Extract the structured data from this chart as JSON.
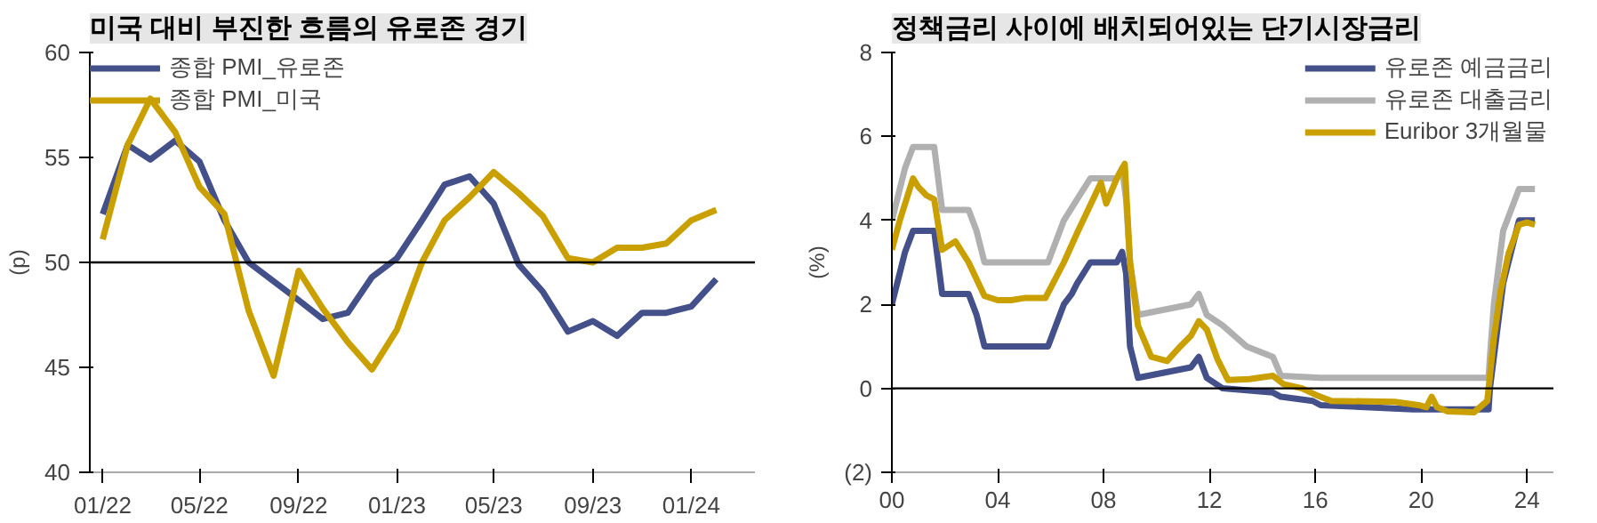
{
  "chart_data": [
    {
      "type": "line",
      "title": "미국 대비 부진한 흐름의 유로존 경기",
      "ylabel": "(p)",
      "x": [
        "2022-01",
        "2022-02",
        "2022-03",
        "2022-04",
        "2022-05",
        "2022-06",
        "2022-07",
        "2022-08",
        "2022-09",
        "2022-10",
        "2022-11",
        "2022-12",
        "2023-01",
        "2023-02",
        "2023-03",
        "2023-04",
        "2023-05",
        "2023-06",
        "2023-07",
        "2023-08",
        "2023-09",
        "2023-10",
        "2023-11",
        "2023-12",
        "2024-01",
        "2024-02"
      ],
      "series": [
        {
          "name": "종합 PMI_유로존",
          "color": "#44508a",
          "values": [
            52.3,
            55.6,
            54.9,
            55.8,
            54.8,
            52.0,
            50.0,
            49.1,
            48.2,
            47.3,
            47.6,
            49.3,
            50.2,
            52.0,
            53.7,
            54.1,
            52.8,
            49.9,
            48.6,
            46.7,
            47.2,
            46.5,
            47.6,
            47.6,
            47.9,
            49.2
          ]
        },
        {
          "name": "종합 PMI_미국",
          "color": "#c9a000",
          "values": [
            51.1,
            55.6,
            57.8,
            56.2,
            53.6,
            52.3,
            47.7,
            44.6,
            49.6,
            47.8,
            46.2,
            44.9,
            46.8,
            50.0,
            52.0,
            53.1,
            54.3,
            53.3,
            52.2,
            50.2,
            50.0,
            50.7,
            50.7,
            50.9,
            52.0,
            52.5
          ]
        }
      ],
      "xlim": [
        "2021-12-16",
        "2024-03-20"
      ],
      "xticks": [
        {
          "value": "2022-01",
          "label": "01/22"
        },
        {
          "value": "2022-05",
          "label": "05/22"
        },
        {
          "value": "2022-09",
          "label": "09/22"
        },
        {
          "value": "2023-01",
          "label": "01/23"
        },
        {
          "value": "2023-05",
          "label": "05/23"
        },
        {
          "value": "2023-09",
          "label": "09/23"
        },
        {
          "value": "2024-01",
          "label": "01/24"
        }
      ],
      "ylim": [
        40,
        60
      ],
      "yticks": [
        40,
        45,
        50,
        55,
        60
      ],
      "ref_lines": [
        {
          "axis": "y",
          "value": 50,
          "color": "#000000"
        }
      ],
      "legend": "top left",
      "grid": false,
      "line_style": "solid",
      "marker": "none"
    },
    {
      "type": "line",
      "title": "정책금리 사이에 배치되어있는 단기시장금리",
      "ylabel": "(%)",
      "series": [
        {
          "name": "유로존 예금금리",
          "color": "#44508a",
          "x": [
            2000.0,
            2000.3,
            2000.5,
            2000.8,
            2001.6,
            2001.7,
            2001.9,
            2002.9,
            2003.2,
            2003.5,
            2005.9,
            2006.2,
            2006.5,
            2006.8,
            2007.0,
            2007.5,
            2008.5,
            2008.7,
            2008.85,
            2009.0,
            2009.3,
            2011.3,
            2011.6,
            2011.9,
            2012.5,
            2014.4,
            2014.7,
            2015.9,
            2016.2,
            2019.7,
            2022.55,
            2022.6,
            2022.75,
            2022.9,
            2023.1,
            2023.4,
            2023.7,
            2024.3
          ],
          "values": [
            2.0,
            2.75,
            3.25,
            3.75,
            3.75,
            3.25,
            2.25,
            2.25,
            1.75,
            1.0,
            1.0,
            1.5,
            2.0,
            2.25,
            2.5,
            3.0,
            3.0,
            3.25,
            2.75,
            1.0,
            0.25,
            0.5,
            0.75,
            0.25,
            0.0,
            -0.1,
            -0.2,
            -0.3,
            -0.4,
            -0.5,
            -0.5,
            0.0,
            0.75,
            1.5,
            2.5,
            3.25,
            4.0,
            4.0
          ]
        },
        {
          "name": "유로존 대출금리",
          "color": "#b0b0b0",
          "x": [
            2000.0,
            2000.3,
            2000.5,
            2000.8,
            2001.6,
            2001.9,
            2002.9,
            2003.2,
            2003.5,
            2005.9,
            2006.5,
            2007.0,
            2007.5,
            2008.5,
            2008.7,
            2008.85,
            2009.0,
            2009.3,
            2011.3,
            2011.6,
            2011.9,
            2012.5,
            2013.4,
            2014.4,
            2014.7,
            2016.2,
            2022.55,
            2022.6,
            2022.75,
            2022.9,
            2023.1,
            2023.4,
            2023.7,
            2024.3
          ],
          "values": [
            4.0,
            4.75,
            5.25,
            5.75,
            5.75,
            4.25,
            4.25,
            3.75,
            3.0,
            3.0,
            4.0,
            4.5,
            5.0,
            5.0,
            5.25,
            4.5,
            3.0,
            1.75,
            2.0,
            2.25,
            1.75,
            1.5,
            1.0,
            0.75,
            0.3,
            0.25,
            0.25,
            0.75,
            2.0,
            2.75,
            3.75,
            4.25,
            4.75,
            4.75
          ]
        },
        {
          "name": "Euribor 3개월물",
          "color": "#c9a000",
          "x": [
            2000.0,
            2000.3,
            2000.8,
            2001.0,
            2001.3,
            2001.6,
            2001.9,
            2002.4,
            2002.9,
            2003.5,
            2004.0,
            2004.5,
            2005.0,
            2005.8,
            2006.5,
            2007.0,
            2007.6,
            2007.9,
            2008.1,
            2008.5,
            2008.8,
            2009.0,
            2009.3,
            2009.8,
            2010.4,
            2010.9,
            2011.3,
            2011.6,
            2011.9,
            2012.3,
            2012.7,
            2013.5,
            2014.4,
            2014.8,
            2015.5,
            2016.0,
            2016.6,
            2019.0,
            2019.9,
            2020.2,
            2020.4,
            2020.6,
            2021.0,
            2022.0,
            2022.5,
            2022.75,
            2023.0,
            2023.3,
            2023.7,
            2024.0,
            2024.3
          ],
          "values": [
            3.3,
            4.0,
            5.0,
            4.8,
            4.6,
            4.5,
            3.3,
            3.5,
            3.0,
            2.2,
            2.1,
            2.1,
            2.15,
            2.15,
            3.0,
            3.7,
            4.5,
            4.9,
            4.4,
            5.0,
            5.35,
            3.0,
            1.5,
            0.75,
            0.65,
            1.0,
            1.25,
            1.6,
            1.4,
            0.7,
            0.2,
            0.22,
            0.3,
            0.1,
            0.0,
            -0.15,
            -0.3,
            -0.32,
            -0.4,
            -0.45,
            -0.2,
            -0.45,
            -0.55,
            -0.57,
            -0.3,
            1.2,
            2.3,
            3.2,
            3.9,
            3.95,
            3.9
          ]
        }
      ],
      "xlim": [
        2000,
        2025
      ],
      "xticks": [
        {
          "value": 2000,
          "label": "00"
        },
        {
          "value": 2004,
          "label": "04"
        },
        {
          "value": 2008,
          "label": "08"
        },
        {
          "value": 2012,
          "label": "12"
        },
        {
          "value": 2016,
          "label": "16"
        },
        {
          "value": 2020,
          "label": "20"
        },
        {
          "value": 2024,
          "label": "24"
        }
      ],
      "ylim": [
        -2,
        8
      ],
      "yticks": [
        {
          "value": -2,
          "label": "(2)"
        },
        0,
        2,
        4,
        6,
        8
      ],
      "ref_lines": [
        {
          "axis": "y",
          "value": 0,
          "color": "#000000"
        }
      ],
      "legend": "top right",
      "grid": false,
      "line_style": "solid",
      "marker": "none"
    }
  ]
}
